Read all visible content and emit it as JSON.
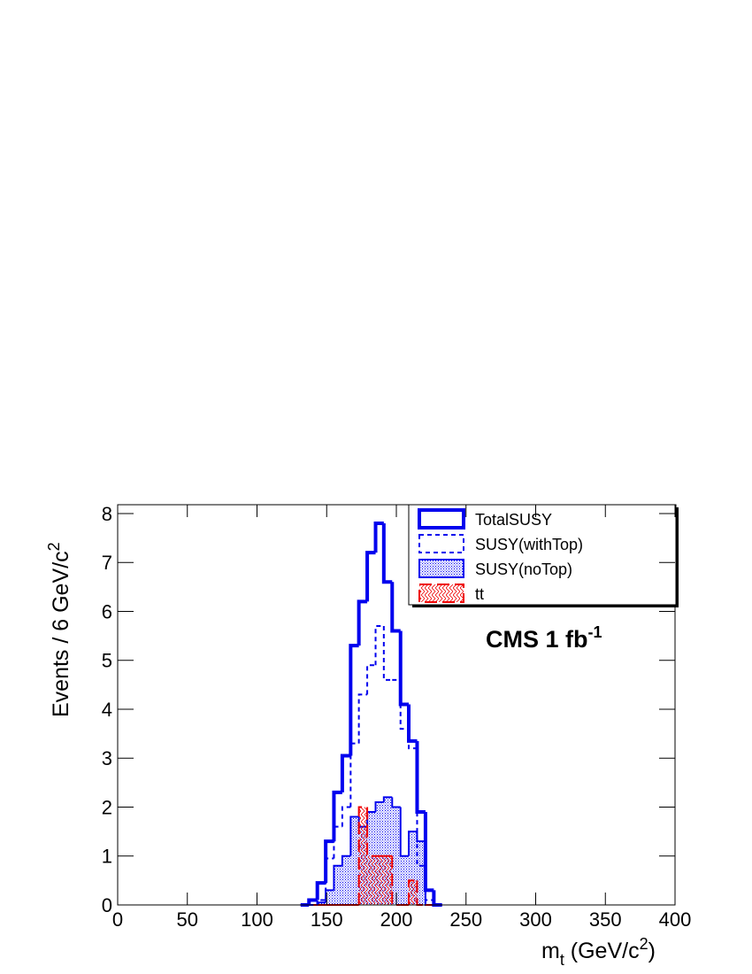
{
  "chart_data": {
    "type": "histogram",
    "x_label": "m",
    "x_label_sub": "t",
    "x_label_unit": " (GeV/c",
    "x_label_sup": "2",
    "x_label_end": ")",
    "y_label": "Events / 6 GeV/c",
    "y_label_sup": "2",
    "annotation": "CMS 1 fb",
    "annotation_sup": "-1",
    "bins": [
      131.3,
      137.3,
      143.3,
      149.3,
      155.2,
      161.2,
      167.2,
      173.1,
      179.1,
      185.1,
      191.0,
      197.0,
      203.0,
      208.9,
      214.9,
      220.9,
      226.9,
      232.8
    ],
    "series": [
      {
        "name": "TotalSUSY",
        "color": "#0000ee",
        "line_style": "solid",
        "fill_pattern": "none",
        "values": [
          0,
          0.1,
          0.45,
          1.3,
          2.3,
          3.05,
          5.3,
          6.2,
          7.2,
          7.8,
          6.6,
          5.6,
          4.1,
          3.35,
          1.9,
          0.3,
          0
        ]
      },
      {
        "name": "SUSY(withTop)",
        "color": "#0000ee",
        "line_style": "dashed",
        "fill_pattern": "none",
        "values": [
          0,
          0,
          0.1,
          0.95,
          1.6,
          2.0,
          3.3,
          4.3,
          4.9,
          5.7,
          4.6,
          4.6,
          3.6,
          3.2,
          0.8,
          0.1,
          0
        ]
      },
      {
        "name": "SUSY(noTop)",
        "color": "#0000ee",
        "line_style": "solid",
        "fill_pattern": "dots",
        "values": [
          0,
          0,
          0.05,
          0.3,
          0.8,
          1.0,
          1.8,
          1.6,
          1.9,
          2.1,
          2.2,
          2.0,
          1.0,
          1.5,
          1.3,
          0,
          0
        ]
      },
      {
        "name": "tt",
        "color": "#ee0000",
        "line_style": "dashed",
        "fill_pattern": "hatch",
        "values": [
          0,
          0,
          0,
          0,
          0,
          0,
          0,
          2.0,
          1.0,
          1.0,
          1.0,
          0,
          0,
          0.5,
          0,
          0,
          0
        ]
      }
    ],
    "xlim": [
      0,
      400
    ],
    "xticks": [
      0,
      50,
      100,
      150,
      200,
      250,
      300,
      350,
      400
    ],
    "ylim": [
      0,
      8.18
    ],
    "yticks": [
      0,
      1,
      2,
      3,
      4,
      5,
      6,
      7,
      8
    ],
    "legend": "upper right"
  }
}
